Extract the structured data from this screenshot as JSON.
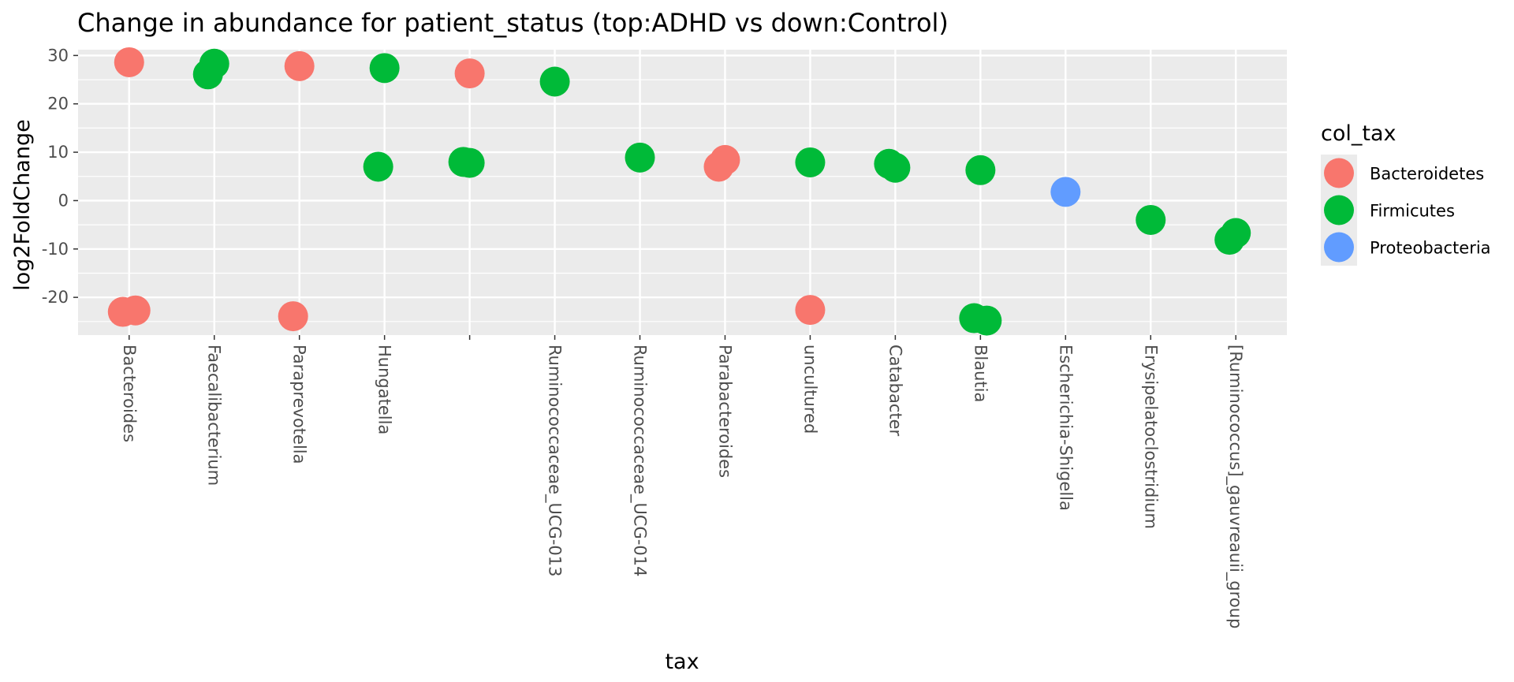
{
  "chart_data": {
    "type": "scatter",
    "title": "Change in abundance for patient_status (top:ADHD vs down:Control)",
    "xlabel": "tax",
    "ylabel": "log2FoldChange",
    "categories": [
      "Bacteroides",
      "Faecalibacterium",
      "Paraprevotella",
      "Hungatella",
      "",
      "Ruminococcaceae_UCG-013",
      "Ruminococcaceae_UCG-014",
      "Parabacteroides",
      "uncultured",
      "Catabacter",
      "Blautia",
      "Escherichia-Shigella",
      "Erysipelatoclostridium",
      "[Ruminococcus]_gauvreauii_group"
    ],
    "ylim": [
      -27.8,
      31.2
    ],
    "yticks": [
      -20,
      -10,
      0,
      10,
      20,
      30
    ],
    "grid": true,
    "legend": {
      "title": "col_tax",
      "position": "right",
      "entries": [
        {
          "name": "Bacteroidetes",
          "color": "#F8766D"
        },
        {
          "name": "Firmicutes",
          "color": "#00BA38"
        },
        {
          "name": "Proteobacteria",
          "color": "#619CFF"
        }
      ]
    },
    "series": [
      {
        "name": "Bacteroidetes",
        "color": "#F8766D",
        "points": [
          {
            "x": "Bacteroides",
            "y": 28.6
          },
          {
            "x": "Bacteroides",
            "y": -23.0
          },
          {
            "x": "Bacteroides",
            "y": -22.7
          },
          {
            "x": "Paraprevotella",
            "y": 27.8
          },
          {
            "x": "Paraprevotella",
            "y": -23.9
          },
          {
            "x": "",
            "y": 26.3
          },
          {
            "x": "Parabacteroides",
            "y": 8.4
          },
          {
            "x": "Parabacteroides",
            "y": 7.0
          },
          {
            "x": "uncultured",
            "y": -22.6
          }
        ]
      },
      {
        "name": "Firmicutes",
        "color": "#00BA38",
        "points": [
          {
            "x": "Faecalibacterium",
            "y": 28.3
          },
          {
            "x": "Faecalibacterium",
            "y": 26.1
          },
          {
            "x": "Hungatella",
            "y": 27.4
          },
          {
            "x": "Hungatella",
            "y": 7.0
          },
          {
            "x": "",
            "y": 7.8
          },
          {
            "x": "",
            "y": 8.0
          },
          {
            "x": "Ruminococcaceae_UCG-013",
            "y": 24.6
          },
          {
            "x": "Ruminococcaceae_UCG-014",
            "y": 8.9
          },
          {
            "x": "uncultured",
            "y": 7.9
          },
          {
            "x": "Catabacter",
            "y": 6.8
          },
          {
            "x": "Catabacter",
            "y": 7.6
          },
          {
            "x": "Blautia",
            "y": 6.3
          },
          {
            "x": "Blautia",
            "y": -24.3
          },
          {
            "x": "Blautia",
            "y": -24.8
          },
          {
            "x": "Erysipelatoclostridium",
            "y": -4.0
          },
          {
            "x": "[Ruminococcus]_gauvreauii_group",
            "y": -6.7
          },
          {
            "x": "[Ruminococcus]_gauvreauii_group",
            "y": -8.1
          }
        ]
      },
      {
        "name": "Proteobacteria",
        "color": "#619CFF",
        "points": [
          {
            "x": "Escherichia-Shigella",
            "y": 1.8
          }
        ]
      }
    ]
  }
}
